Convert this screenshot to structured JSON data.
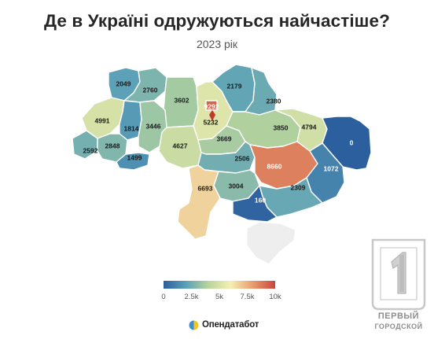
{
  "title": "Де в Україні одружуються найчастіше?",
  "subtitle": "2023 рік",
  "colors": {
    "scale": [
      "#2c5f9e",
      "#5aa0b8",
      "#b7d49c",
      "#f5efb4",
      "#e89c6e",
      "#c8463c"
    ],
    "no_data": "#eeeeee",
    "marker": "#c0392b"
  },
  "map_data": {
    "regions": [
      {
        "id": "volyn",
        "name": "Волинська",
        "value": 2049
      },
      {
        "id": "rivne",
        "name": "Рівненська",
        "value": 2760
      },
      {
        "id": "zhytomyr",
        "name": "Житомирська",
        "value": 3602
      },
      {
        "id": "kyiv-oblast",
        "name": "Київська",
        "value": 5232
      },
      {
        "id": "kyiv-city",
        "name": "м. Київ",
        "value": 9292
      },
      {
        "id": "chernihiv",
        "name": "Чернігівська",
        "value": 2179
      },
      {
        "id": "sumy",
        "name": "Сумська",
        "value": 2380
      },
      {
        "id": "lviv",
        "name": "Львівська",
        "value": 4991
      },
      {
        "id": "ternopil",
        "name": "Тернопільська",
        "value": 1814
      },
      {
        "id": "khmelnytskyi",
        "name": "Хмельницька",
        "value": 3446
      },
      {
        "id": "zakarpattia",
        "name": "Закарпатська",
        "value": 2592
      },
      {
        "id": "ivano-frankivsk",
        "name": "Івано-Франківська",
        "value": 2848
      },
      {
        "id": "chernivtsi",
        "name": "Чернівецька",
        "value": 1499
      },
      {
        "id": "vinnytsia",
        "name": "Вінницька",
        "value": 4627
      },
      {
        "id": "cherkasy",
        "name": "Черкаська",
        "value": 3669
      },
      {
        "id": "poltava",
        "name": "Полтавська",
        "value": 3850
      },
      {
        "id": "kharkiv",
        "name": "Харківська",
        "value": 4794
      },
      {
        "id": "luhansk",
        "name": "Луганська",
        "value": 0
      },
      {
        "id": "kirovohrad",
        "name": "Кіровоградська",
        "value": 2506
      },
      {
        "id": "dnipropetrovsk",
        "name": "Дніпропетровська",
        "value": 8660
      },
      {
        "id": "donetsk",
        "name": "Донецька",
        "value": 1072
      },
      {
        "id": "odesa",
        "name": "Одеська",
        "value": 6693
      },
      {
        "id": "mykolaiv",
        "name": "Миколаївська",
        "value": 3004
      },
      {
        "id": "zaporizhzhia",
        "name": "Запорізька",
        "value": 2309
      },
      {
        "id": "kherson",
        "name": "Херсонська",
        "value": 160
      },
      {
        "id": "crimea",
        "name": "АР Крим",
        "value": null
      }
    ]
  },
  "legend": {
    "min": 0,
    "max": 10000,
    "ticks": [
      {
        "value": 0,
        "label": "0"
      },
      {
        "value": 2500,
        "label": "2.5k"
      },
      {
        "value": 5000,
        "label": "5k"
      },
      {
        "value": 7500,
        "label": "7.5k"
      },
      {
        "value": 10000,
        "label": "10k"
      }
    ]
  },
  "brand": {
    "name": "Опендатабот"
  },
  "watermark": {
    "line1": "ПЕРВЫЙ",
    "line2": "ГОРОДСКОЙ"
  }
}
